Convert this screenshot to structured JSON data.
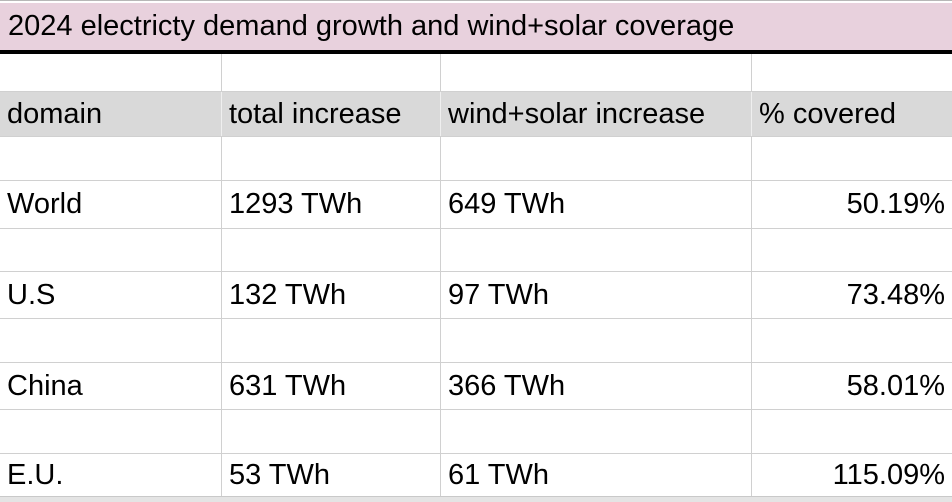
{
  "title": "2024 electricty demand growth and wind+solar coverage",
  "table": {
    "headers": [
      "domain",
      "total increase",
      "wind+solar increase",
      "% covered"
    ],
    "rows": [
      {
        "domain": "World",
        "total": "1293 TWh",
        "wind_solar": "649 TWh",
        "covered": "50.19%"
      },
      {
        "domain": "U.S",
        "total": "132 TWh",
        "wind_solar": "97 TWh",
        "covered": "73.48%"
      },
      {
        "domain": "China",
        "total": "631 TWh",
        "wind_solar": "366 TWh",
        "covered": "58.01%"
      },
      {
        "domain": "E.U.",
        "total": "53 TWh",
        "wind_solar": "61 TWh",
        "covered": "115.09%"
      }
    ]
  },
  "colors": {
    "title_bg": "#e8d1dd",
    "header_bg": "#d9d9d9",
    "gridline": "#d0d0d0",
    "title_rule": "#000000",
    "bottom_strip": "#e4e4e4"
  }
}
